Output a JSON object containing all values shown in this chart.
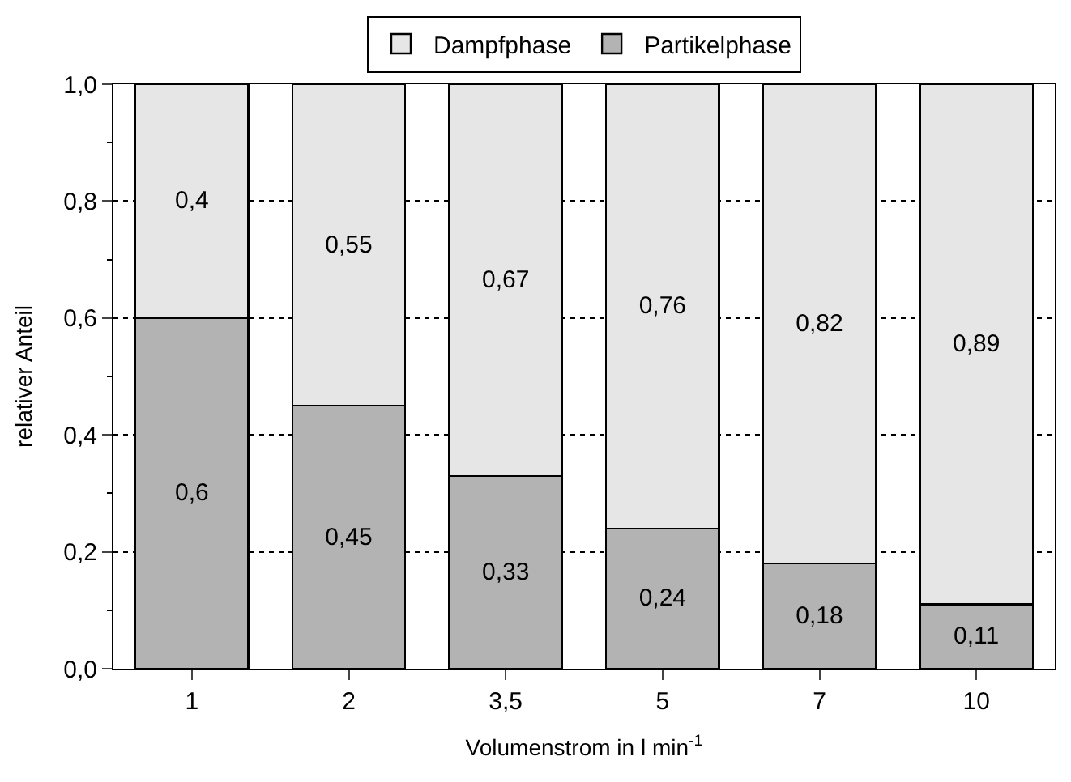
{
  "chart_data": {
    "type": "bar",
    "stacked": true,
    "xlabel": "Volumenstrom in l min$^{-1}$",
    "ylabel": "relativer Anteil",
    "categories": [
      "1",
      "2",
      "3,5",
      "5",
      "7",
      "10"
    ],
    "series": [
      {
        "name": "Partikelphase",
        "color": "#b3b3b3",
        "values": [
          0.6,
          0.45,
          0.33,
          0.24,
          0.18,
          0.11
        ],
        "value_labels": [
          "0,6",
          "0,45",
          "0,33",
          "0,24",
          "0,18",
          "0,11"
        ]
      },
      {
        "name": "Dampfphase",
        "color": "#e6e6e6",
        "values": [
          0.4,
          0.55,
          0.67,
          0.76,
          0.82,
          0.89
        ],
        "value_labels": [
          "0,4",
          "0,55",
          "0,67",
          "0,76",
          "0,82",
          "0,89"
        ]
      }
    ],
    "ylim": [
      0,
      1
    ],
    "yticks": [
      {
        "value": 0,
        "label": "0,0"
      },
      {
        "value": 0.2,
        "label": "0,2"
      },
      {
        "value": 0.4,
        "label": "0,4"
      },
      {
        "value": 0.6,
        "label": "0,6"
      },
      {
        "value": 0.8,
        "label": "0,8"
      },
      {
        "value": 1,
        "label": "1,0"
      }
    ],
    "grid": "y",
    "legend": "top"
  }
}
